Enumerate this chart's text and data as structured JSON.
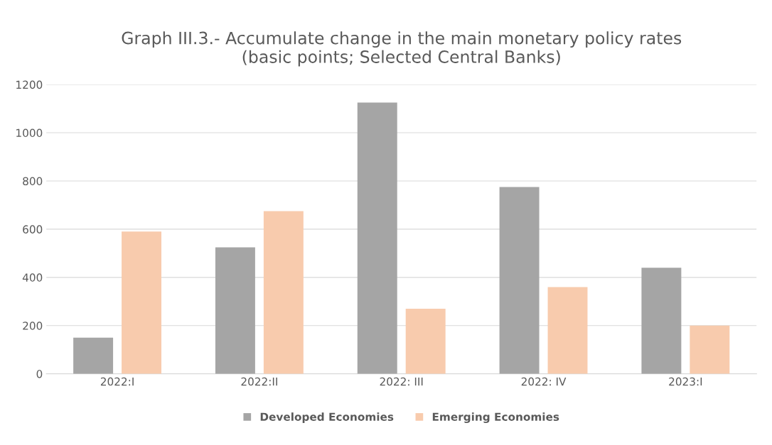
{
  "chart_data": {
    "type": "bar",
    "title": "Graph III.3.- Accumulate change in the main monetary policy rates\n(basic points; Selected Central Banks)",
    "categories": [
      "2022:I",
      "2022:II",
      "2022: III",
      "2022: IV",
      "2023:I"
    ],
    "series": [
      {
        "name": "Developed Economies",
        "color": "#a5a5a5",
        "values": [
          150,
          525,
          1125,
          775,
          440
        ]
      },
      {
        "name": "Emerging Economies",
        "color": "#f8cbad",
        "values": [
          590,
          675,
          270,
          360,
          200
        ]
      }
    ],
    "ylim": [
      0,
      1200
    ],
    "yticks": [
      0,
      200,
      400,
      600,
      800,
      1000,
      1200
    ],
    "grid": "y",
    "legend": "bottom"
  }
}
